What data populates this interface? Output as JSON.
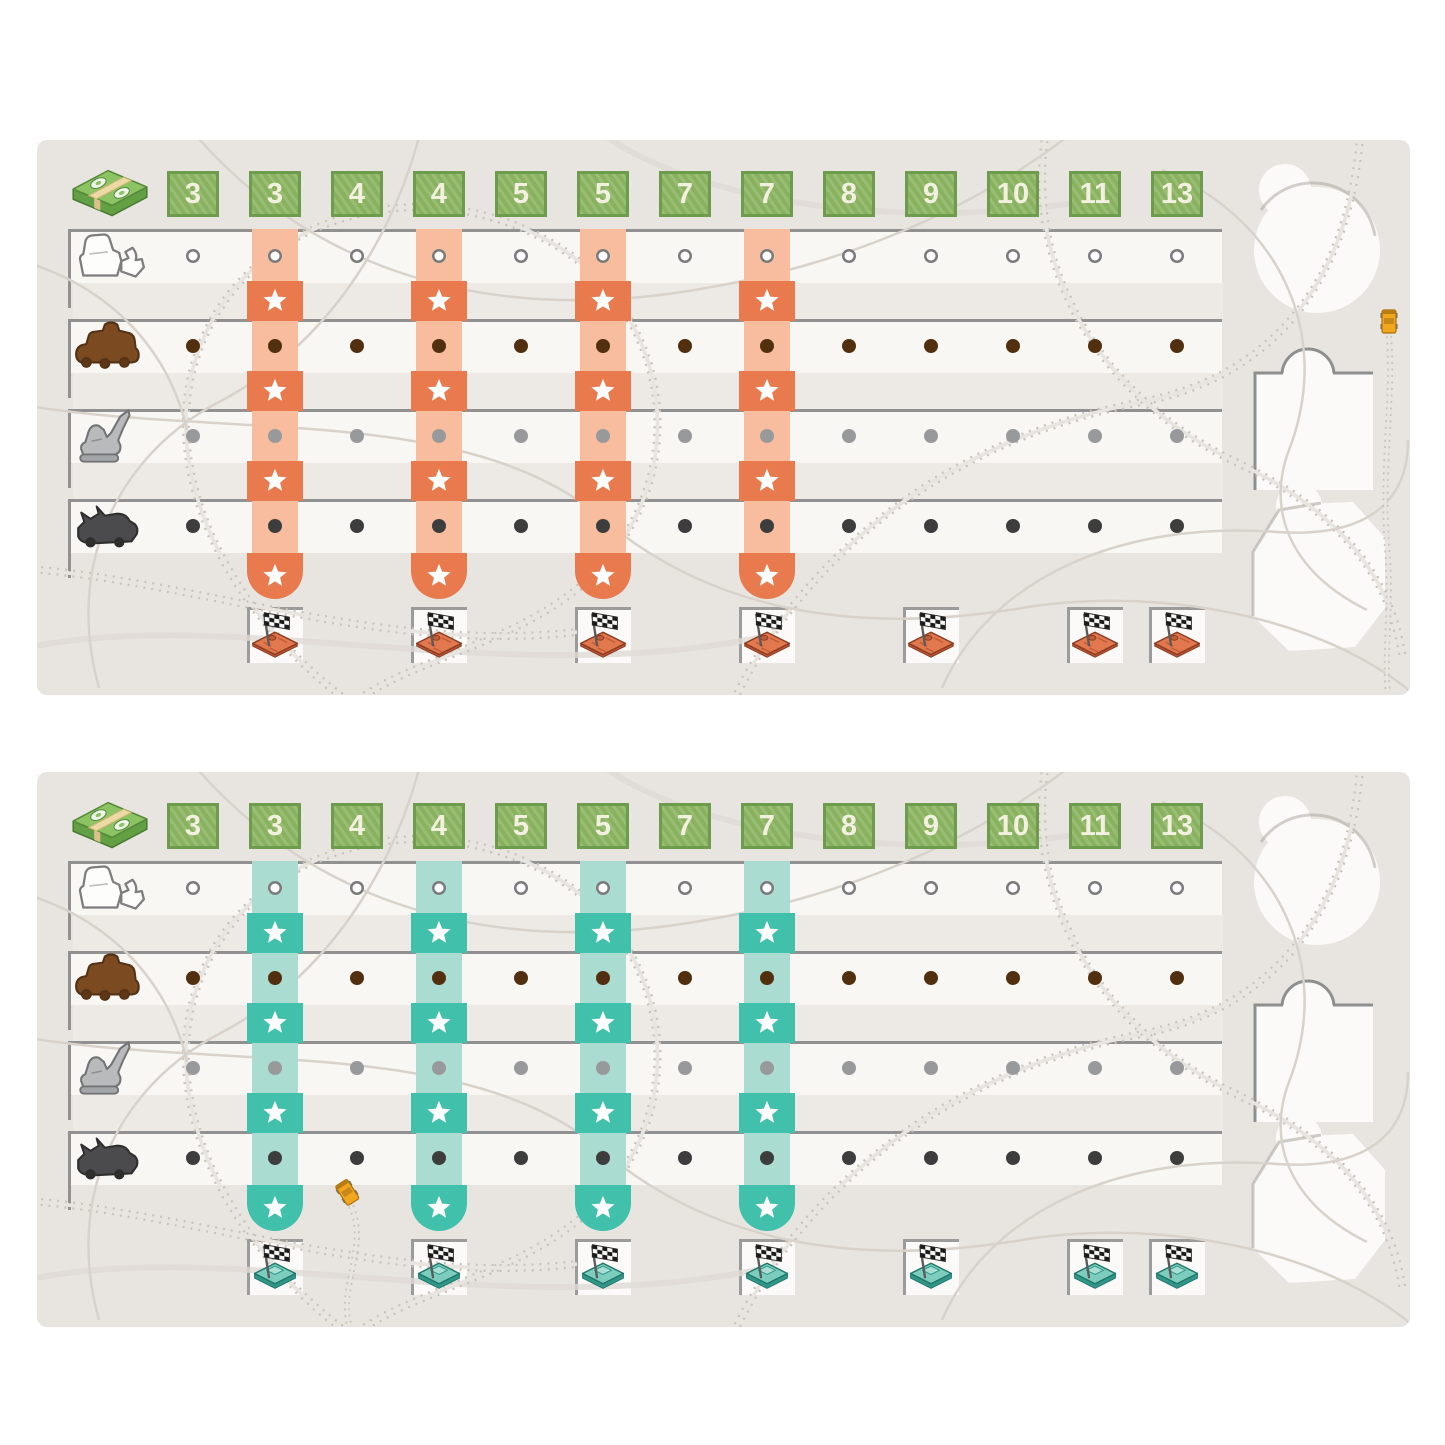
{
  "sheet": {
    "background": "#ffffff",
    "board_background": "#e8e5e1",
    "strip_color": "#f8f7f4",
    "strip_border": "#919191",
    "gap_band_color": "#edeae6"
  },
  "money_row": {
    "icon": "money-stack-icon",
    "square_fill": "#88b25e",
    "square_border": "#6d9c4c",
    "values": [
      "3",
      "3",
      "4",
      "4",
      "5",
      "5",
      "7",
      "7",
      "8",
      "9",
      "10",
      "11",
      "13"
    ]
  },
  "boards": [
    {
      "name": "top-player-board",
      "accent": "#e87a4d",
      "accent_light": "#f7bd9e",
      "platform": "orange",
      "star_value_indexes": [
        1,
        3,
        5,
        7
      ],
      "flag_value_indexes": [
        1,
        3,
        5,
        7,
        9,
        11,
        12
      ]
    },
    {
      "name": "bottom-player-board",
      "accent": "#41c0ab",
      "accent_light": "#aadcd1",
      "platform": "teal",
      "star_value_indexes": [
        1,
        3,
        5,
        7
      ],
      "flag_value_indexes": [
        1,
        3,
        5,
        7,
        9,
        11,
        12
      ]
    }
  ],
  "vehicle_rows": [
    {
      "name": "white-loader-row",
      "icon": "white-loader-icon",
      "dot": "open",
      "dot_color": "#ffffff",
      "dot_ring": "#7a7a7a"
    },
    {
      "name": "brown-truck-row",
      "icon": "brown-truck-icon",
      "dot": "filled",
      "dot_color": "#52300f"
    },
    {
      "name": "gray-excavator-row",
      "icon": "gray-excavator-icon",
      "dot": "filled",
      "dot_color": "#98999b"
    },
    {
      "name": "dark-truck-row",
      "icon": "dark-truck-icon",
      "dot": "filled",
      "dot_color": "#3d3d3d"
    }
  ],
  "decor": {
    "road_line_color": "#d8d2cb",
    "tire_track_color": "#c9c2bb",
    "soft_road_color": "#dfdad4",
    "slot_fill": "#fbfaf9",
    "slot_shadow": "#a9a29a",
    "yellow_vehicle_color": "#f2a61d",
    "star_color": "#ffffff",
    "flag_dark": "#1b1b1b",
    "flag_light": "#f7f7f5"
  }
}
